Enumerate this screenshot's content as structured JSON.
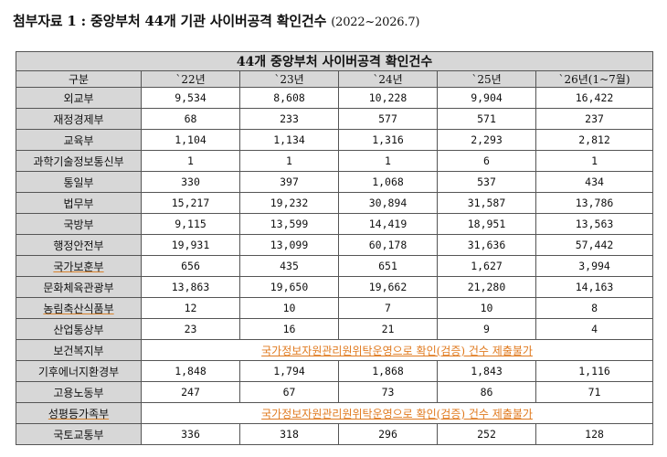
{
  "caption": {
    "title": "첨부자료 1 : 중앙부처 44개 기관 사이버공격 확인건수",
    "range": "(2022~2026.7)"
  },
  "table": {
    "title": "44개 중앙부처 사이버공격 확인건수",
    "headers": [
      "구분",
      "`22년",
      "`23년",
      "`24년",
      "`25년",
      "`26년(1~7월)"
    ],
    "rows": [
      {
        "agency": "외교부",
        "values": [
          "9,534",
          "8,608",
          "10,228",
          "9,904",
          "16,422"
        ]
      },
      {
        "agency": "재정경제부",
        "values": [
          "68",
          "233",
          "577",
          "571",
          "237"
        ]
      },
      {
        "agency": "교육부",
        "values": [
          "1,104",
          "1,134",
          "1,316",
          "2,293",
          "2,812"
        ]
      },
      {
        "agency": "과학기술정보통신부",
        "values": [
          "1",
          "1",
          "1",
          "6",
          "1"
        ]
      },
      {
        "agency": "통일부",
        "values": [
          "330",
          "397",
          "1,068",
          "537",
          "434"
        ]
      },
      {
        "agency": "법무부",
        "values": [
          "15,217",
          "19,232",
          "30,894",
          "31,587",
          "13,786"
        ]
      },
      {
        "agency": "국방부",
        "values": [
          "9,115",
          "13,599",
          "14,419",
          "18,951",
          "13,563"
        ]
      },
      {
        "agency": "행정안전부",
        "values": [
          "19,931",
          "13,099",
          "60,178",
          "31,636",
          "57,442"
        ]
      },
      {
        "agency": "국가보훈부",
        "values": [
          "656",
          "435",
          "651",
          "1,627",
          "3,994"
        ],
        "underline": true
      },
      {
        "agency": "문화체육관광부",
        "values": [
          "13,863",
          "19,650",
          "19,662",
          "21,280",
          "14,163"
        ]
      },
      {
        "agency": "농림축산식품부",
        "values": [
          "12",
          "10",
          "7",
          "10",
          "8"
        ],
        "underline": true
      },
      {
        "agency": "산업통상부",
        "values": [
          "23",
          "16",
          "21",
          "9",
          "4"
        ]
      },
      {
        "agency": "보건복지부",
        "note": "국가정보자원관리원위탁운영으로 확인(검증) 건수 제출불가"
      },
      {
        "agency": "기후에너지환경부",
        "values": [
          "1,848",
          "1,794",
          "1,868",
          "1,843",
          "1,116"
        ]
      },
      {
        "agency": "고용노동부",
        "values": [
          "247",
          "67",
          "73",
          "86",
          "71"
        ]
      },
      {
        "agency": "성평등가족부",
        "note": "국가정보자원관리원위탁운영으로 확인(검증) 건수 제출불가",
        "underline": true
      },
      {
        "agency": "국토교통부",
        "values": [
          "336",
          "318",
          "296",
          "252",
          "128"
        ]
      }
    ]
  }
}
